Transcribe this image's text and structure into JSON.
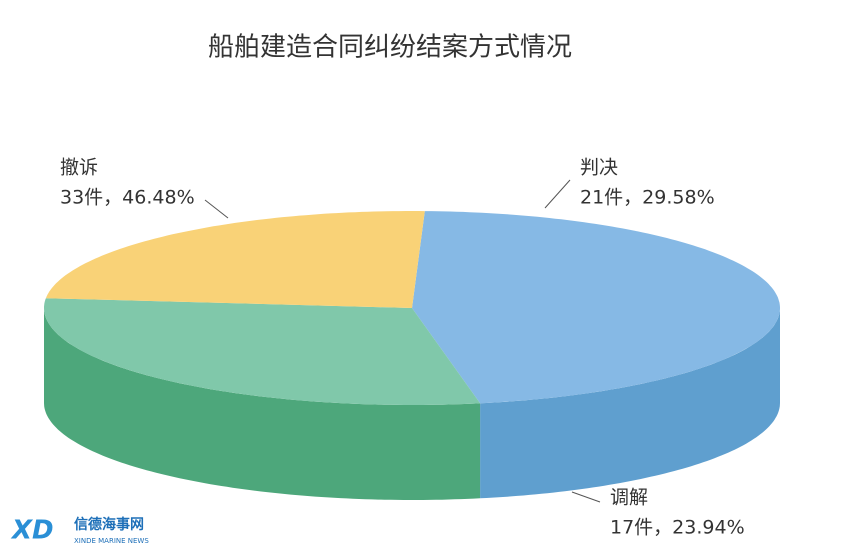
{
  "chart_data": {
    "type": "pie",
    "title": "船舶建造合同纠纷结案方式情况",
    "categories": [
      "撤诉",
      "判决",
      "调解"
    ],
    "values": [
      46.48,
      29.58,
      23.94
    ],
    "counts": [
      33,
      21,
      17
    ],
    "value_labels": [
      "33件，46.48%",
      "21件，29.58%",
      "17件，23.94%"
    ],
    "colors": [
      "#86b9e5",
      "#80c8aa",
      "#f9d277"
    ],
    "side_colors": [
      "#5f9fcf",
      "#4da77b",
      "#e1ad5b"
    ]
  },
  "watermark": {
    "logo": "XD",
    "name": "信德海事网",
    "subtitle": "XINDE MARINE NEWS"
  }
}
